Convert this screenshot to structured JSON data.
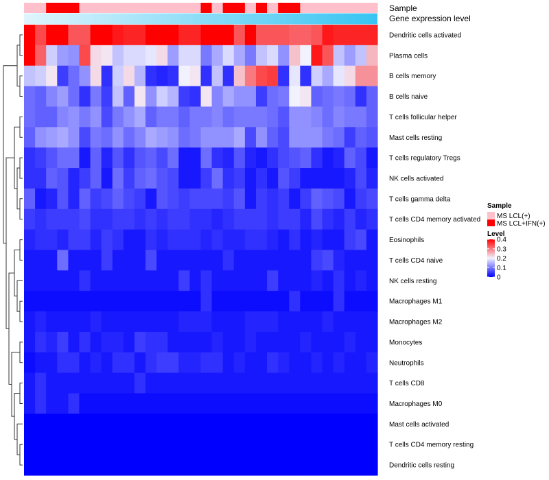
{
  "chart_data": {
    "type": "heatmap",
    "title": "",
    "annotation_rows": {
      "sample_label": "Sample",
      "expression_label": "Gene expression level"
    },
    "sample_groups": [
      "pink",
      "pink",
      "red",
      "red",
      "red",
      "pink",
      "pink",
      "pink",
      "pink",
      "pink",
      "pink",
      "pink",
      "pink",
      "pink",
      "pink",
      "pink",
      "red",
      "pink",
      "red",
      "red",
      "pink",
      "red",
      "pink",
      "red",
      "red",
      "pink",
      "pink",
      "pink",
      "pink",
      "pink",
      "pink",
      "pink"
    ],
    "expression_gradient": {
      "start": "#e0f5fd",
      "end": "#37c4f2"
    },
    "rows": [
      "Dendritic cells activated",
      "Plasma cells",
      "B cells memory",
      "B cells naive",
      "T cells follicular helper",
      "Mast cells resting",
      "T cells regulatory  Tregs",
      "NK cells activated",
      "T cells gamma delta",
      "T cells CD4 memory activated",
      "Eosinophils",
      "T cells CD4 naive",
      "NK cells resting",
      "Macrophages M1",
      "Macrophages M2",
      "Monocytes",
      "Neutrophils",
      "T cells CD8",
      "Macrophages M0",
      "Mast cells activated",
      "T cells CD4 memory resting",
      "Dendritic cells resting"
    ],
    "values": [
      [
        0.4,
        0.34,
        0.4,
        0.4,
        0.33,
        0.33,
        0.4,
        0.4,
        0.38,
        0.37,
        0.37,
        0.4,
        0.4,
        0.4,
        0.37,
        0.37,
        0.4,
        0.4,
        0.4,
        0.33,
        0.4,
        0.33,
        0.33,
        0.33,
        0.32,
        0.32,
        0.33,
        0.38,
        0.37,
        0.37,
        0.37,
        0.37
      ],
      [
        0.4,
        0.32,
        0.17,
        0.13,
        0.12,
        0.34,
        0.22,
        0.21,
        0.16,
        0.18,
        0.18,
        0.19,
        0.22,
        0.13,
        0.18,
        0.18,
        0.1,
        0.14,
        0.18,
        0.14,
        0.1,
        0.16,
        0.18,
        0.12,
        0.24,
        0.2,
        0.38,
        0.33,
        0.16,
        0.13,
        0.16,
        0.25
      ],
      [
        0.16,
        0.17,
        0.21,
        0.05,
        0.09,
        0.12,
        0.22,
        0.04,
        0.17,
        0.22,
        0.15,
        0.04,
        0.03,
        0.04,
        0.2,
        0.21,
        0.04,
        0.16,
        0.04,
        0.24,
        0.3,
        0.34,
        0.35,
        0.04,
        0.19,
        0.04,
        0.17,
        0.14,
        0.19,
        0.22,
        0.28,
        0.28
      ],
      [
        0.09,
        0.08,
        0.11,
        0.13,
        0.09,
        0.04,
        0.1,
        0.05,
        0.16,
        0.08,
        0.21,
        0.12,
        0.17,
        0.15,
        0.05,
        0.04,
        0.21,
        0.11,
        0.14,
        0.12,
        0.12,
        0.05,
        0.09,
        0.1,
        0.2,
        0.21,
        0.08,
        0.09,
        0.1,
        0.09,
        0.04,
        0.08
      ],
      [
        0.09,
        0.08,
        0.08,
        0.11,
        0.12,
        0.1,
        0.12,
        0.06,
        0.1,
        0.12,
        0.14,
        0.08,
        0.1,
        0.1,
        0.08,
        0.1,
        0.1,
        0.11,
        0.09,
        0.1,
        0.1,
        0.1,
        0.09,
        0.07,
        0.12,
        0.12,
        0.11,
        0.09,
        0.11,
        0.1,
        0.1,
        0.08
      ],
      [
        0.08,
        0.12,
        0.13,
        0.14,
        0.12,
        0.06,
        0.1,
        0.09,
        0.12,
        0.09,
        0.11,
        0.14,
        0.13,
        0.12,
        0.09,
        0.1,
        0.12,
        0.12,
        0.12,
        0.14,
        0.06,
        0.12,
        0.08,
        0.06,
        0.12,
        0.12,
        0.12,
        0.1,
        0.09,
        0.05,
        0.08,
        0.07
      ],
      [
        0.04,
        0.05,
        0.07,
        0.09,
        0.09,
        0.02,
        0.08,
        0.03,
        0.07,
        0.04,
        0.07,
        0.08,
        0.06,
        0.09,
        0.02,
        0.02,
        0.09,
        0.04,
        0.03,
        0.07,
        0.03,
        0.02,
        0.04,
        0.06,
        0.07,
        0.08,
        0.04,
        0.02,
        0.03,
        0.08,
        0.06,
        0.02
      ],
      [
        0.04,
        0.04,
        0.08,
        0.07,
        0.03,
        0.05,
        0.08,
        0.02,
        0.09,
        0.05,
        0.08,
        0.09,
        0.07,
        0.06,
        0.02,
        0.02,
        0.05,
        0.09,
        0.04,
        0.05,
        0.02,
        0.04,
        0.02,
        0.07,
        0.05,
        0.02,
        0.02,
        0.02,
        0.02,
        0.03,
        0.06,
        0.03
      ],
      [
        0.08,
        0.02,
        0.03,
        0.07,
        0.03,
        0.08,
        0.05,
        0.06,
        0.08,
        0.06,
        0.05,
        0.02,
        0.07,
        0.06,
        0.05,
        0.06,
        0.06,
        0.06,
        0.05,
        0.07,
        0.02,
        0.05,
        0.04,
        0.05,
        0.02,
        0.05,
        0.08,
        0.07,
        0.06,
        0.02,
        0.05,
        0.06
      ],
      [
        0.05,
        0.04,
        0.05,
        0.05,
        0.05,
        0.06,
        0.04,
        0.04,
        0.05,
        0.05,
        0.04,
        0.05,
        0.04,
        0.05,
        0.05,
        0.04,
        0.04,
        0.03,
        0.04,
        0.05,
        0.05,
        0.05,
        0.04,
        0.05,
        0.05,
        0.03,
        0.06,
        0.04,
        0.03,
        0.05,
        0.03,
        0.04
      ],
      [
        0.03,
        0.04,
        0.04,
        0.03,
        0.05,
        0.05,
        0.03,
        0.05,
        0.04,
        0.02,
        0.02,
        0.04,
        0.03,
        0.04,
        0.04,
        0.04,
        0.03,
        0.04,
        0.03,
        0.03,
        0.04,
        0.04,
        0.03,
        0.02,
        0.04,
        0.02,
        0.03,
        0.02,
        0.02,
        0.05,
        0.06,
        0.02
      ],
      [
        0.02,
        0.02,
        0.02,
        0.09,
        0.02,
        0.02,
        0.02,
        0.05,
        0.02,
        0.02,
        0.02,
        0.06,
        0.02,
        0.02,
        0.02,
        0.02,
        0.02,
        0.02,
        0.04,
        0.02,
        0.02,
        0.02,
        0.02,
        0.02,
        0.02,
        0.02,
        0.05,
        0.06,
        0.03,
        0.02,
        0.02,
        0.02
      ],
      [
        0.02,
        0.02,
        0.02,
        0.02,
        0.02,
        0.04,
        0.02,
        0.02,
        0.02,
        0.02,
        0.02,
        0.02,
        0.02,
        0.02,
        0.05,
        0.02,
        0.04,
        0.02,
        0.02,
        0.02,
        0.02,
        0.02,
        0.05,
        0.02,
        0.02,
        0.02,
        0.03,
        0.02,
        0.04,
        0.02,
        0.03,
        0.02
      ],
      [
        0.01,
        0.01,
        0.01,
        0.01,
        0.01,
        0.01,
        0.01,
        0.01,
        0.01,
        0.01,
        0.01,
        0.01,
        0.01,
        0.01,
        0.01,
        0.01,
        0.04,
        0.01,
        0.01,
        0.01,
        0.01,
        0.01,
        0.01,
        0.01,
        0.04,
        0.01,
        0.01,
        0.01,
        0.04,
        0.01,
        0.01,
        0.01
      ],
      [
        0.02,
        0.03,
        0.02,
        0.02,
        0.02,
        0.02,
        0.03,
        0.02,
        0.02,
        0.02,
        0.02,
        0.02,
        0.02,
        0.02,
        0.03,
        0.03,
        0.03,
        0.02,
        0.02,
        0.02,
        0.03,
        0.03,
        0.03,
        0.02,
        0.02,
        0.02,
        0.02,
        0.03,
        0.02,
        0.02,
        0.02,
        0.02
      ],
      [
        0.02,
        0.04,
        0.03,
        0.05,
        0.02,
        0.04,
        0.02,
        0.03,
        0.03,
        0.02,
        0.05,
        0.04,
        0.04,
        0.02,
        0.02,
        0.02,
        0.02,
        0.03,
        0.02,
        0.02,
        0.03,
        0.02,
        0.02,
        0.02,
        0.02,
        0.03,
        0.02,
        0.02,
        0.02,
        0.03,
        0.02,
        0.02
      ],
      [
        0.01,
        0.02,
        0.02,
        0.04,
        0.04,
        0.02,
        0.03,
        0.02,
        0.04,
        0.04,
        0.02,
        0.04,
        0.05,
        0.05,
        0.03,
        0.03,
        0.04,
        0.04,
        0.02,
        0.03,
        0.02,
        0.02,
        0.04,
        0.03,
        0.02,
        0.02,
        0.03,
        0.02,
        0.03,
        0.02,
        0.02,
        0.03
      ],
      [
        0.02,
        0.04,
        0.02,
        0.02,
        0.02,
        0.02,
        0.02,
        0.02,
        0.02,
        0.02,
        0.04,
        0.02,
        0.02,
        0.02,
        0.02,
        0.02,
        0.02,
        0.02,
        0.02,
        0.02,
        0.02,
        0.02,
        0.02,
        0.02,
        0.02,
        0.02,
        0.02,
        0.02,
        0.02,
        0.02,
        0.02,
        0.02
      ],
      [
        0.02,
        0.04,
        0.02,
        0.02,
        0.04,
        0.01,
        0.01,
        0.01,
        0.01,
        0.01,
        0.01,
        0.01,
        0.01,
        0.01,
        0.01,
        0.01,
        0.01,
        0.01,
        0.01,
        0.01,
        0.01,
        0.01,
        0.01,
        0.01,
        0.01,
        0.01,
        0.01,
        0.01,
        0.01,
        0.01,
        0.01,
        0.01
      ],
      [
        0.0,
        0.0,
        0.0,
        0.0,
        0.0,
        0.0,
        0.0,
        0.0,
        0.0,
        0.0,
        0.0,
        0.0,
        0.0,
        0.0,
        0.0,
        0.0,
        0.0,
        0.0,
        0.0,
        0.0,
        0.0,
        0.0,
        0.0,
        0.0,
        0.0,
        0.0,
        0.0,
        0.0,
        0.0,
        0.0,
        0.0,
        0.0
      ],
      [
        0.0,
        0.0,
        0.0,
        0.0,
        0.0,
        0.0,
        0.0,
        0.0,
        0.0,
        0.0,
        0.0,
        0.0,
        0.0,
        0.0,
        0.0,
        0.0,
        0.0,
        0.0,
        0.0,
        0.0,
        0.0,
        0.0,
        0.0,
        0.0,
        0.0,
        0.0,
        0.0,
        0.0,
        0.0,
        0.0,
        0.0,
        0.0
      ],
      [
        0.0,
        0.0,
        0.0,
        0.0,
        0.0,
        0.0,
        0.0,
        0.0,
        0.0,
        0.0,
        0.0,
        0.0,
        0.0,
        0.0,
        0.0,
        0.0,
        0.0,
        0.0,
        0.0,
        0.0,
        0.0,
        0.0,
        0.0,
        0.0,
        0.0,
        0.0,
        0.0,
        0.0,
        0.0,
        0.0,
        0.0,
        0.0
      ]
    ],
    "color_scale": {
      "stops": [
        {
          "value": 0.0,
          "color": "#0000ff"
        },
        {
          "value": 0.2,
          "color": "#f2f2ff"
        },
        {
          "value": 0.4,
          "color": "#ff0000"
        }
      ]
    },
    "legend": {
      "sample": {
        "title": "Sample",
        "items": [
          {
            "label": "MS LCL(+)",
            "color": "#ffc0cb"
          },
          {
            "label": "MS LCL+IFN(+)",
            "color": "#ff0000"
          }
        ]
      },
      "level": {
        "title": "Level",
        "ticks": [
          {
            "label": "0.4",
            "value": 0.4
          },
          {
            "label": "0.3",
            "value": 0.3
          },
          {
            "label": "0.2",
            "value": 0.2
          },
          {
            "label": "0.1",
            "value": 0.1
          },
          {
            "label": "0",
            "value": 0.0
          }
        ]
      },
      "placement": "right"
    },
    "dendrogram": "rows"
  }
}
